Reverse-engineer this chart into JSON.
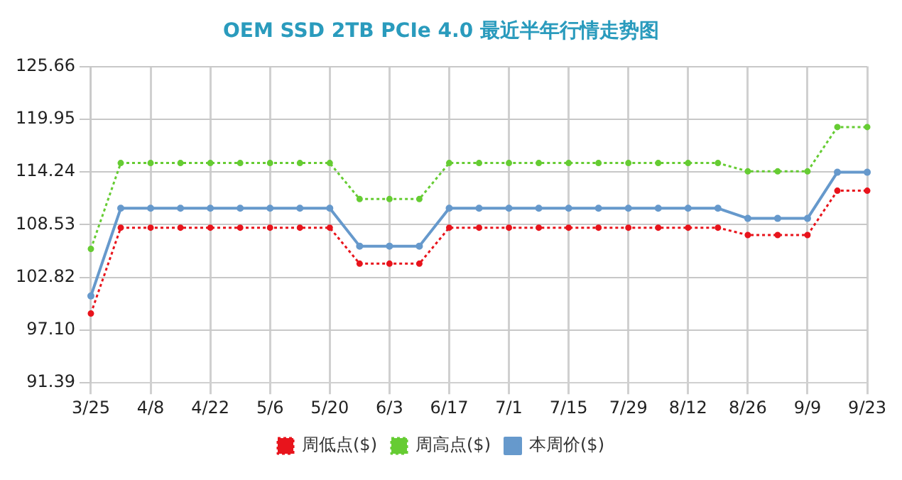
{
  "chart_data": {
    "type": "line",
    "title": "OEM SSD 2TB PCIe 4.0 最近半年行情走势图",
    "categories": [
      "3/25",
      null,
      "4/8",
      null,
      "4/22",
      null,
      "5/6",
      null,
      "5/20",
      null,
      "6/3",
      null,
      "6/17",
      null,
      "7/1",
      null,
      "7/15",
      null,
      "7/29",
      null,
      "8/12",
      null,
      "8/26",
      null,
      "9/9",
      null,
      "9/23"
    ],
    "series": [
      {
        "name": "周低点($)",
        "color": "#e8141c",
        "line_style": "dotted",
        "values": [
          98.9,
          108.2,
          108.2,
          108.2,
          108.2,
          108.2,
          108.2,
          108.2,
          108.2,
          104.3,
          104.3,
          104.3,
          108.2,
          108.2,
          108.2,
          108.2,
          108.2,
          108.2,
          108.2,
          108.2,
          108.2,
          108.2,
          107.4,
          107.4,
          107.4,
          112.2,
          112.2
        ]
      },
      {
        "name": "周高点($)",
        "color": "#66cc33",
        "line_style": "dotted",
        "values": [
          105.9,
          115.2,
          115.2,
          115.2,
          115.2,
          115.2,
          115.2,
          115.2,
          115.2,
          111.3,
          111.3,
          111.3,
          115.2,
          115.2,
          115.2,
          115.2,
          115.2,
          115.2,
          115.2,
          115.2,
          115.2,
          115.2,
          114.3,
          114.3,
          114.3,
          119.1,
          119.1
        ]
      },
      {
        "name": "本周价($)",
        "color": "#6699cc",
        "line_style": "solid",
        "values": [
          100.8,
          110.3,
          110.3,
          110.3,
          110.3,
          110.3,
          110.3,
          110.3,
          110.3,
          106.2,
          106.2,
          106.2,
          110.3,
          110.3,
          110.3,
          110.3,
          110.3,
          110.3,
          110.3,
          110.3,
          110.3,
          110.3,
          109.2,
          109.2,
          109.2,
          114.2,
          114.2
        ]
      }
    ],
    "ylim": [
      91.39,
      125.66
    ],
    "yticks": [
      91.39,
      {
        "value": 97.1,
        "label": "97.10"
      },
      102.82,
      108.53,
      114.24,
      119.95,
      125.66
    ],
    "grid": true,
    "legend": "bottom",
    "marker": "circle"
  }
}
